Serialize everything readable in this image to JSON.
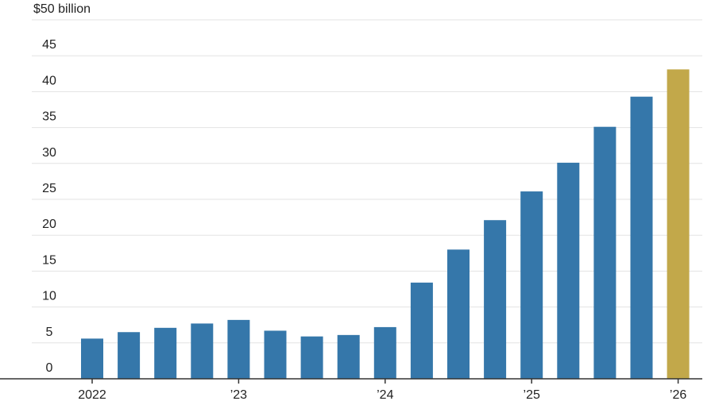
{
  "chart_data": {
    "type": "bar",
    "title": "",
    "xlabel": "",
    "ylabel": "",
    "y_top_label": "$50 billion",
    "ylim": [
      0,
      50
    ],
    "yticks": [
      0,
      5,
      10,
      15,
      20,
      25,
      30,
      35,
      40,
      45,
      50
    ],
    "ytick_labels": [
      "0",
      "5",
      "10",
      "15",
      "20",
      "25",
      "30",
      "35",
      "40",
      "45",
      "$50 billion"
    ],
    "grid": true,
    "x_labels": [
      {
        "text": "2022",
        "at_bar": 0
      },
      {
        "text": "’23",
        "at_bar": 4
      },
      {
        "text": "’24",
        "at_bar": 8
      },
      {
        "text": "’25",
        "at_bar": 12
      },
      {
        "text": "’26",
        "at_bar": 16
      }
    ],
    "values": [
      5.6,
      6.5,
      7.1,
      7.7,
      8.2,
      6.7,
      5.9,
      6.1,
      7.2,
      13.4,
      18.0,
      22.1,
      26.1,
      30.1,
      35.1,
      39.3,
      43.1
    ],
    "colors": {
      "default_bar": "#3577aa",
      "highlight_bar": "#c2a84a",
      "highlight_index": 16
    }
  }
}
